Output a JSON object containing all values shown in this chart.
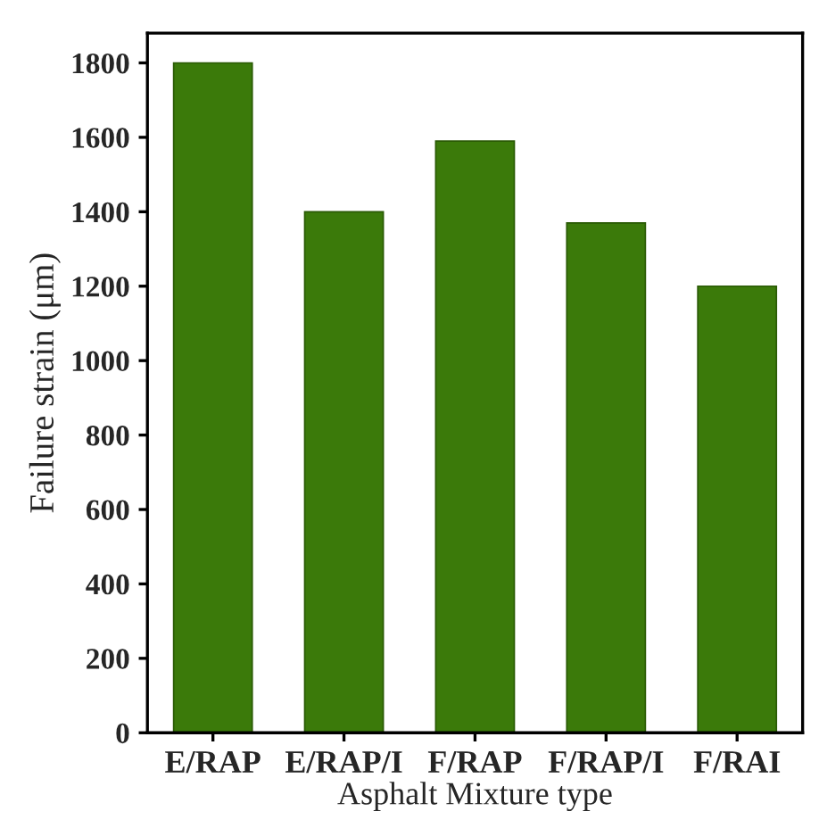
{
  "chart_data": {
    "type": "bar",
    "xlabel": "Asphalt Mixture type",
    "ylabel": "Failure strain (μm)",
    "categories": [
      "E/RAP",
      "E/RAP/I",
      "F/RAP",
      "F/RAP/I",
      "F/RAI"
    ],
    "values": [
      1800,
      1400,
      1590,
      1370,
      1200
    ],
    "color": "#3b7a0a",
    "ylim": [
      0,
      1880
    ],
    "yticks": [
      0,
      200,
      400,
      600,
      800,
      1000,
      1200,
      1400,
      1600,
      1800
    ],
    "grid": false
  }
}
